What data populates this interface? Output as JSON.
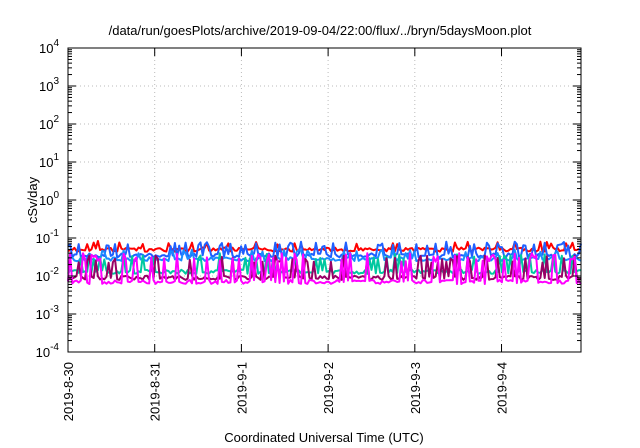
{
  "chart_data": {
    "type": "line",
    "title": "/data/run/goesPlots/archive/2019-09-04/22:00/flux/../bryn/5daysMoon.plot",
    "xlabel": "Coordinated Universal Time (UTC)",
    "ylabel": "cSv/day",
    "yscale": "log",
    "ylim": [
      0.0001,
      10000
    ],
    "xlim": [
      "2019-08-30",
      "2019-09-04 22:00"
    ],
    "grid": true,
    "ytick_labels": [
      {
        "base": "10",
        "exp": "-4"
      },
      {
        "base": "10",
        "exp": "-3"
      },
      {
        "base": "10",
        "exp": "-2"
      },
      {
        "base": "10",
        "exp": "-1"
      },
      {
        "base": "10",
        "exp": "0"
      },
      {
        "base": "10",
        "exp": "1"
      },
      {
        "base": "10",
        "exp": "2"
      },
      {
        "base": "10",
        "exp": "3"
      },
      {
        "base": "10",
        "exp": "4"
      }
    ],
    "xtick_labels": [
      "2019-8-30",
      "2019-8-31",
      "2019-9-1",
      "2019-9-2",
      "2019-9-3",
      "2019-9-4"
    ],
    "series": [
      {
        "color": "#ff0000",
        "baseline": 0.05,
        "spike": 0.085,
        "spike_prob": 0.1
      },
      {
        "color": "#1f5fff",
        "baseline": 0.035,
        "spike": 0.08,
        "spike_prob": 0.28
      },
      {
        "color": "#1a8cff",
        "baseline": 0.028,
        "spike": 0.05,
        "spike_prob": 0.15
      },
      {
        "color": "#00c8a0",
        "baseline": 0.013,
        "spike": 0.04,
        "spike_prob": 0.2
      },
      {
        "color": "#990066",
        "baseline": 0.009,
        "spike": 0.035,
        "spike_prob": 0.22
      },
      {
        "color": "#ff00ff",
        "baseline": 0.007,
        "spike": 0.04,
        "spike_prob": 0.3
      }
    ]
  }
}
